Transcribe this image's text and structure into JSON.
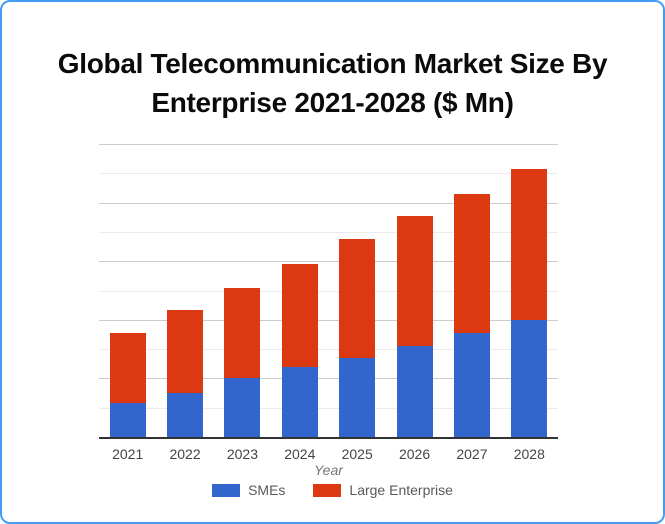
{
  "card": {
    "title_line1": "Global Telecommunication Market Size By",
    "title_line2": "Enterprise 2021-2028 ($ Mn)"
  },
  "colors": {
    "card_border": "#459df3",
    "smes_blue": "#3366cc",
    "large_enterprise_red": "#dc3912",
    "major_gridline": "#cccccc",
    "minor_gridline": "#ebebeb",
    "axis_line": "#333333",
    "tick_text": "#454545",
    "axis_title_text": "#757575",
    "legend_text": "#58595b"
  },
  "chart_data": {
    "type": "bar",
    "stacked": true,
    "title": "Global Telecommunication Market Size By Enterprise 2021-2028 ($ Mn)",
    "categories": [
      "2021",
      "2022",
      "2023",
      "2024",
      "2025",
      "2026",
      "2027",
      "2028"
    ],
    "series": [
      {
        "name": "SMEs",
        "color": "#3366cc",
        "values": [
          115,
          150,
          200,
          240,
          270,
          310,
          355,
          400
        ]
      },
      {
        "name": "Large Enterprise",
        "color": "#dc3912",
        "values": [
          240,
          285,
          310,
          350,
          405,
          445,
          475,
          515
        ]
      }
    ],
    "stacked_totals": [
      355,
      435,
      510,
      590,
      675,
      755,
      830,
      915
    ],
    "xlabel": "Year",
    "ylabel": "",
    "ylim": [
      0,
      1000
    ],
    "y_tick_labels_visible": false,
    "gridlines": {
      "major_every": 200,
      "minor_every": 100,
      "visible": true
    },
    "legend_position": "bottom"
  }
}
